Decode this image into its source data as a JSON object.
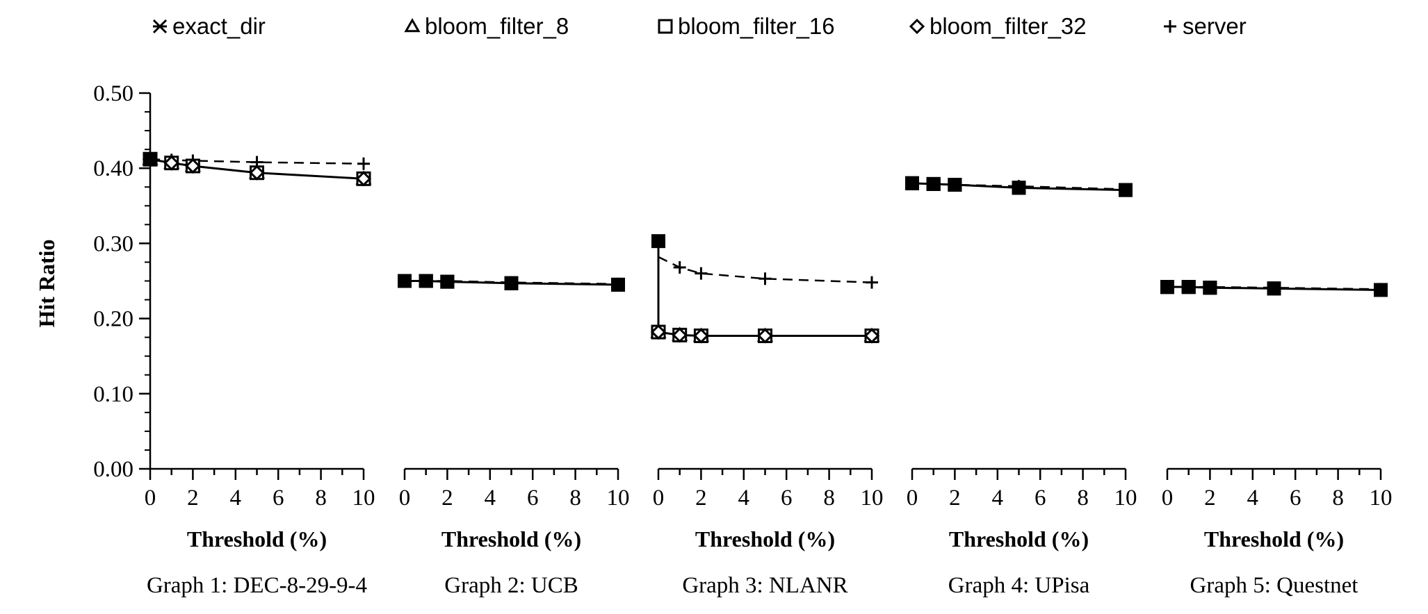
{
  "legend": [
    {
      "label": "exact_dir",
      "marker": "asterisk"
    },
    {
      "label": "bloom_filter_8",
      "marker": "triangle"
    },
    {
      "label": "bloom_filter_16",
      "marker": "square"
    },
    {
      "label": "bloom_filter_32",
      "marker": "diamond"
    },
    {
      "label": "server",
      "marker": "plus"
    }
  ],
  "chart_data": {
    "type": "line",
    "ylabel": "Hit Ratio",
    "ylim": [
      0,
      0.5
    ],
    "yticks": [
      "0.00",
      "0.10",
      "0.20",
      "0.30",
      "0.40",
      "0.50"
    ],
    "xlim": [
      0,
      10
    ],
    "xticks": [
      "0",
      "2",
      "4",
      "6",
      "8",
      "10"
    ],
    "legend_position": "top",
    "panels": [
      {
        "caption": "Graph 1: DEC-8-29-9-4",
        "xlabel": "Threshold (%)",
        "x": [
          0,
          1,
          2,
          5,
          10
        ],
        "series": [
          {
            "name": "exact_dir",
            "values": [
              0.412,
              null,
              null,
              null,
              null
            ]
          },
          {
            "name": "bloom_filter_8",
            "values": [
              0.412,
              0.407,
              0.403,
              0.394,
              0.386
            ]
          },
          {
            "name": "bloom_filter_16",
            "values": [
              0.412,
              0.407,
              0.403,
              0.394,
              0.386
            ]
          },
          {
            "name": "bloom_filter_32",
            "values": [
              0.412,
              0.407,
              0.403,
              0.394,
              0.386
            ]
          },
          {
            "name": "server",
            "values": [
              0.412,
              0.411,
              0.41,
              0.408,
              0.406
            ]
          }
        ]
      },
      {
        "caption": "Graph 2: UCB",
        "xlabel": "Threshold (%)",
        "x": [
          0,
          1,
          2,
          5,
          10
        ],
        "series": [
          {
            "name": "exact_dir",
            "values": [
              0.25,
              null,
              null,
              null,
              null
            ]
          },
          {
            "name": "bloom_filter_8",
            "values": [
              0.25,
              0.25,
              0.249,
              0.247,
              0.245
            ]
          },
          {
            "name": "bloom_filter_16",
            "values": [
              0.25,
              0.25,
              0.249,
              0.247,
              0.245
            ]
          },
          {
            "name": "bloom_filter_32",
            "values": [
              0.25,
              0.25,
              0.249,
              0.247,
              0.245
            ]
          },
          {
            "name": "server",
            "values": [
              0.25,
              0.25,
              0.25,
              0.248,
              0.246
            ]
          }
        ]
      },
      {
        "caption": "Graph 3: NLANR",
        "xlabel": "Threshold (%)",
        "x": [
          0,
          1,
          2,
          5,
          10
        ],
        "series": [
          {
            "name": "exact_dir",
            "values": [
              0.303,
              null,
              null,
              null,
              null
            ]
          },
          {
            "name": "bloom_filter_8",
            "values": [
              0.182,
              0.178,
              0.177,
              0.177,
              0.177
            ]
          },
          {
            "name": "bloom_filter_16",
            "values": [
              0.182,
              0.178,
              0.177,
              0.177,
              0.177
            ]
          },
          {
            "name": "bloom_filter_32",
            "values": [
              0.182,
              0.178,
              0.177,
              0.177,
              0.177
            ]
          },
          {
            "name": "server",
            "values": [
              0.282,
              0.268,
              0.26,
              0.253,
              0.248
            ]
          }
        ]
      },
      {
        "caption": "Graph 4: UPisa",
        "xlabel": "Threshold (%)",
        "x": [
          0,
          1,
          2,
          5,
          10
        ],
        "series": [
          {
            "name": "exact_dir",
            "values": [
              0.38,
              null,
              null,
              null,
              null
            ]
          },
          {
            "name": "bloom_filter_8",
            "values": [
              0.38,
              0.379,
              0.378,
              0.374,
              0.371
            ]
          },
          {
            "name": "bloom_filter_16",
            "values": [
              0.38,
              0.379,
              0.378,
              0.374,
              0.371
            ]
          },
          {
            "name": "bloom_filter_32",
            "values": [
              0.38,
              0.379,
              0.378,
              0.374,
              0.371
            ]
          },
          {
            "name": "server",
            "values": [
              0.38,
              0.379,
              0.378,
              0.376,
              0.372
            ]
          }
        ]
      },
      {
        "caption": "Graph 5: Questnet",
        "xlabel": "Threshold (%)",
        "x": [
          0,
          1,
          2,
          5,
          10
        ],
        "series": [
          {
            "name": "exact_dir",
            "values": [
              0.242,
              null,
              null,
              null,
              null
            ]
          },
          {
            "name": "bloom_filter_8",
            "values": [
              0.242,
              0.242,
              0.241,
              0.24,
              0.238
            ]
          },
          {
            "name": "bloom_filter_16",
            "values": [
              0.242,
              0.242,
              0.241,
              0.24,
              0.238
            ]
          },
          {
            "name": "bloom_filter_32",
            "values": [
              0.242,
              0.242,
              0.241,
              0.24,
              0.238
            ]
          },
          {
            "name": "server",
            "values": [
              0.242,
              0.242,
              0.242,
              0.241,
              0.239
            ]
          }
        ]
      }
    ]
  }
}
